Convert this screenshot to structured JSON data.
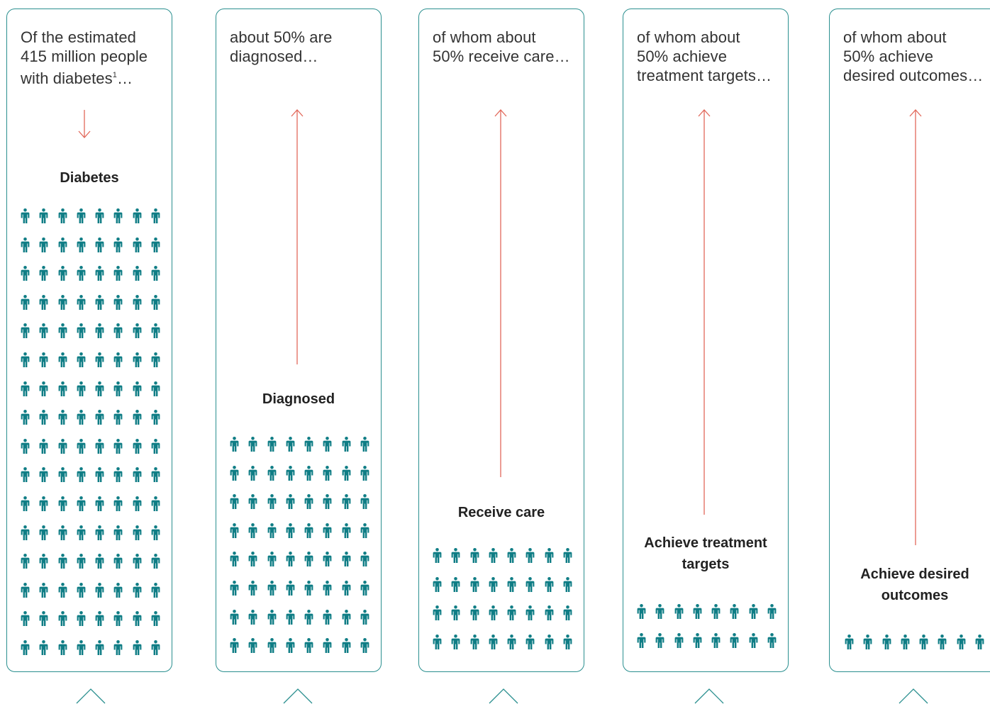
{
  "columns": [
    {
      "intro": "Of the estimated\n415 million people\nwith diabetes",
      "intro_sup": "1",
      "intro_tail": "…",
      "label": "Diabetes",
      "people_count": 128,
      "arrow": "down"
    },
    {
      "intro": "about 50% are\ndiagnosed…",
      "label": "Diagnosed",
      "people_count": 64,
      "arrow": "up"
    },
    {
      "intro": "of whom about\n50% receive care…",
      "label": "Receive care",
      "people_count": 32,
      "arrow": "up"
    },
    {
      "intro": "of whom about\n50% achieve\ntreatment targets…",
      "label": "Achieve treatment\ntargets",
      "people_count": 16,
      "arrow": "up"
    },
    {
      "intro": "of whom about\n50% achieve\ndesired outcomes…",
      "label": "Achieve desired\noutcomes",
      "people_count": 8,
      "arrow": "up"
    }
  ],
  "colors": {
    "border": "#2a8f8f",
    "person": "#0f7d85",
    "arrow": "#e2685a",
    "chevron": "#2a8f8f"
  },
  "icons": {
    "person": "person-icon",
    "arrow_up": "arrow-up-icon",
    "arrow_down": "arrow-down-icon",
    "chevron": "chevron-up-icon"
  }
}
